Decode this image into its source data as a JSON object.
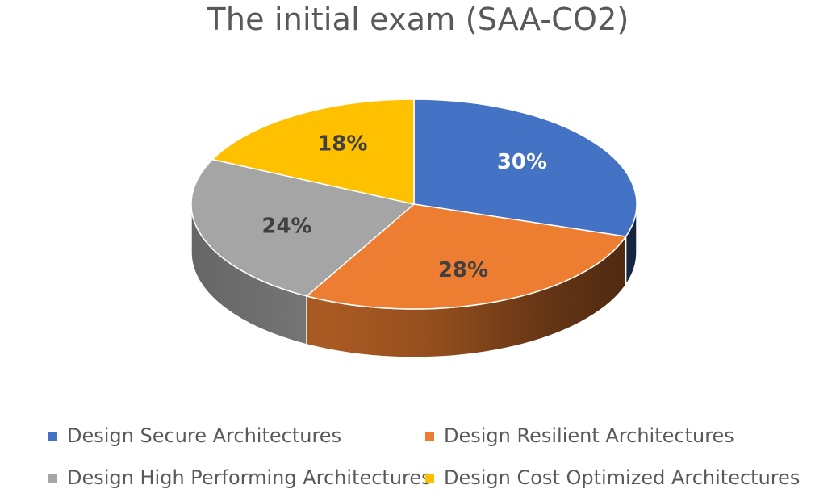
{
  "chart_data": {
    "type": "pie",
    "title": "The initial exam (SAA-CO2)",
    "slices": [
      {
        "name": "Design Secure Architectures",
        "value": 30,
        "label": "30%",
        "color": "#4472C4",
        "label_color": "#ffffff"
      },
      {
        "name": "Design Resilient Architectures",
        "value": 28,
        "label": "28%",
        "color": "#ED7D31",
        "label_color": "#404040"
      },
      {
        "name": "Design High Performing Architectures",
        "value": 24,
        "label": "24%",
        "color": "#A5A5A5",
        "label_color": "#404040"
      },
      {
        "name": "Design Cost Optimized Architectures",
        "value": 18,
        "label": "18%",
        "color": "#FFC000",
        "label_color": "#404040"
      }
    ],
    "legend_position": "bottom",
    "style": "3d"
  }
}
